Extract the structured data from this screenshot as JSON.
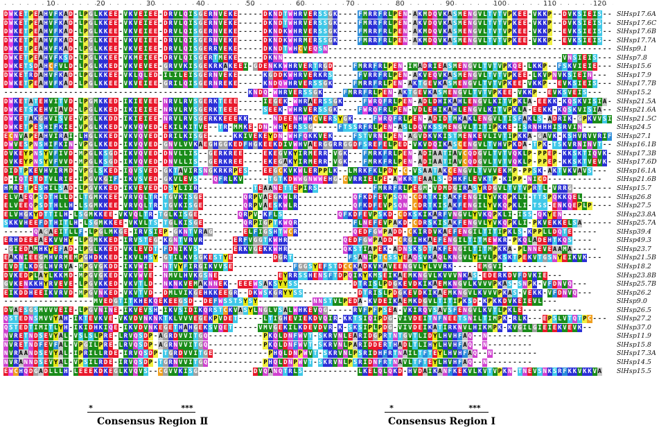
{
  "ruler": {
    "ticks": [
      "10",
      "20",
      "30",
      "40",
      "50",
      "60",
      "70",
      "80",
      "90",
      "100",
      "110",
      "120"
    ]
  },
  "colors": {
    "D": "#e8192c",
    "E": "#e8192c",
    "K": "#2b2fd6",
    "R": "#2b2fd6",
    "H": "#2b2fd6",
    "A": "#c8c8c8",
    "G": "#a0a0a0",
    "V": "#1a8c1a",
    "I": "#1a8c1a",
    "L": "#1a8c1a",
    "M": "#1a8c1a",
    "F": "#2a8bd9",
    "W": "#e040e0",
    "Y": "#e6e617",
    "S": "#3fc8e8",
    "T": "#3fc8e8",
    "N": "#cf40cf",
    "Q": "#cf40cf",
    "P": "#f0f040",
    "C": "#f0a020"
  },
  "sequences": [
    {
      "name": "SlHsp17.6A",
      "seq": "DWKETPEAHVFKAD-LPGLKKEE-VKVEIEE-DRVLQISGERNVEKE-----DKNDTWHRVERSSGK----FMRRFRLPEN-AKMDQVKASMENGVLTVTVPKEE-VKKP--DVKSIEIS---"
    },
    {
      "name": "SlHsp17.6C",
      "seq": "DWKETPEAHVFKAD-LPGLKKEE-VKVEIEE-DRVLQISGERNVEKE-----DKNDTWHRVERSSGK----FMRRFRLPEN-AKVDQVKASMENGVLTVTVPKEE-VKKP--DVKSIEIS---"
    },
    {
      "name": "SlHsp17.6B",
      "seq": "DWKETPEAHVFKAD-LPGLKKEE-VKVEIEE-DRVLQISGERNVEKE-----DKNDKWHRVERSSGK----FMRRFRLPEN-AKMDQVKASMENGVLTVTVPKEE-VKKP--EVKSIEIS---"
    },
    {
      "name": "SlHsp17.7A",
      "seq": "DWKETPEAHVFKAD-LPGLKKEE-VKVEIEE-DRVLQISGERNVEKE-----DKNDKWHRMERSSGK----FMRRFRLPEN-AKMDQVKASMENGVLTVTVPKEE-VKKP--EVKSIEIS---"
    },
    {
      "name": "SlHsp9.1",
      "seq": "DWKETPEAHVFKAD-LPGLKKEE-VKVEIEE-DRVLQISGERRVEKE-----DKNDTWHCVEQSN---------------------------------------------------------"
    },
    {
      "name": "SlHsp7.8",
      "seq": "DWKETPEAHVFKSD-LPGLKKEE-VKMEIEE-DRVLQISGERTMEKE-----DKNN--------------------------------------------------------VNSIEIS---"
    },
    {
      "name": "SlHsp15.6",
      "seq": "DWKETSDAHCFVLD-LPGLKKED-VKVEVEE-GRVVKISGEKRKAKEEI-GDENKKWHRVERTRGD----FMRRFRLPEN-IMADRIEASMENGVLTVTVPKQE-LKKP--FSKVIEIE---"
    },
    {
      "name": "SlHsp17.9",
      "seq": "DWKETRDAHVFKAD-LPGLKKEE-VKLQLED-ILILEISGERNVEKE-----KGDDKWHRVERKRS-----FVRRFRLPEN-AKVEQVKASMENGVLTVTVPKEE-LKVPNVKSIEIN---"
    },
    {
      "name": "SlHsp17.7B",
      "seq": "DWKETPEAHVFKAD-LPGLKKEE-VKVEIEE-GRILQISGERNREKE-----KNDQWHRVERSSGK----FMRRFRLPEN-AKTGEVKASMENGVLTVTVPKEE-VKKP--EVKSIEIS---"
    },
    {
      "name": "SlHsp15.2",
      "seq": "-------------------------------------------------KNDQ-WHRVERSSGK----FMRRFRLPEN-AKTGEVKASMENGVLTVTVPKEE-VKKP--EVKSVEIS---"
    },
    {
      "name": "SlHsp21.5A",
      "seq": "DWKETATEHVITVD-LPGMKKED-IKIEVEE-NRVLRVSGERKTEEE-----IEGEK-WHRAERSSGK----FWRQFRLPEN-ADLDHIKAHLENGVLKITVPKLA-EEKK-KQSKVISIA---"
    },
    {
      "name": "SlHsp21.6A",
      "seq": "DWKETSKEHVIAVD-LPGLKKED-IKIEIEE-NRVLRVSGERKTEEE-----SEEK-WHRVERSSGK----FWRQFRLPEN-VDLEHIKAHLENGVLKITVPKLA-EEKK-KQSKVISIA---"
    },
    {
      "name": "SlHsp21.5C",
      "seq": "DWKETAKGHVISVE-VPGLKKDD-IKIEIEE-NRVLRVSGERKKEEEKK-----NDEENHWHCVERSYGK----FWRQFRLPEN-ADIDTMKAKLENGVLTISFAKLS-ADRIK-GPKVVSIE---"
    },
    {
      "name": "SlHsp24.5",
      "seq": "DWKETPESHIFKIE-VPGLKKED-VKVQVED-EKILKITVE--TR-MMKE-DN-WHYERSSG-----FTSSRFRLPEN-ASLDQVKSSMENGVLTITIPKKE-ISRNHHHISRVIN---"
    },
    {
      "name": "SlHsp27.1",
      "seq": "ECNVAPEAHVIRAI-LHGLKKED-VKVQVED-DRILKISGE-----KKIVEKEYDN-WHFQKKVEK----FSTVRNLPEN-AGVDKVKISTMENKEVLIVTIPKKA-GAVK-KSHVRVVRIF---"
    },
    {
      "name": "SlHsp16.1B",
      "seq": "DWVESPNSHIFKIN-VPGLKKED-IKVQVED-GNVLVVKAEGHGGKEDFHGKEEKDIVWHVAERGGRRGGDFSREFELPED-VKVDQIKASCENGVLTVHVPKDA-TPK-TSKVRNINVT---"
    },
    {
      "name": "SlHsp17.3B",
      "seq": "DVKEYPNSYVFIVD-MPGLKSGD-IKVQVED-DNVLLIS--GERKREE----EKEGVKYIRMERR-VGK---FMRKFRLPEN-ADIAATIAVCQDGVLTVTVQKLP-PPEP-KKSKTIQVK---"
    },
    {
      "name": "SlHsp17.6D",
      "seq": "DVKEYPNSYVFVVD-MPGLKSGD-IKVQVED-DNVLLIS--GERKREE----EKEGAKYIRMERR-VGK---FMRKFRLPEN-ADIAATIAVCQDGVLTVTVQKLP-PPEP-KKSKTVEVK---"
    },
    {
      "name": "SlHsp16.1A",
      "seq": "DIDTPKEVHVIRMD-VPGLSKED-IQVSVED-GKTAVIRSNGKRKRPES---EEGCKVKWLERPPLK--LMRKFKLPDY-C-VSAATAKCENGVLTVVVEKMP-PPSK-AKTVKVAVS---"
    },
    {
      "name": "SlHsp21.6B",
      "seq": "D-IQTETDTVLRIE-IPGVKGIF-IKVSVED-GKVLEVS---QFRLKV-----TGTKDWWGNWWEHG-CVRRIELPE-AWKRTEAALS-DHKFLEVKTP-KIPP-NICD-----------"
    },
    {
      "name": "SlHsp15.7",
      "seq": "HMRETPESHILSAD-LPGVKKED-IKVEVED-DSYLIIR-----------TEAANETTEPIRS-----------FMRRFRLPEGM-VDMDGIRASYRDGVLTVTVPRTL-VRRG-----------"
    },
    {
      "name": "SlHsp26.8",
      "seq": "ELVAEQPSDTHLLD-LTGMKKEE-VRVQLTR-TGVKISGE--------QRPVAEGKWLR-----------QFKDFEVPSQN-CDRTKISAKFENGILYVKQPKLI-TTSPQKKQEL------"
    },
    {
      "name": "SlHsp27.5",
      "seq": "ELVEEQPSDTHLLH-LSGMKKEE-VRVQLTR-TGVKISGE--------QRPVAESKWLR-----------QFKDFEVPSQN-CDRTKISAKFENGILYVKQPKLI-TSS-ENKQEPLP----"
    },
    {
      "name": "SlHsp23.8A",
      "seq": "ELVHGKYDTTILH-LSGMKKEE-VKVQLTR-TGLKISGE--------QRPV-KFLS-----------QFKDFEVPSKD-CDKSKIKARFVNGVLYVKQPKLI-ISS-QKYEN------"
    },
    {
      "name": "SlHsp25.7A",
      "seq": "SKKVHEEFDTHITLH-LSGMKKEE-VKVLTS-TGLKISGE--------QRPIGPTKWQR-----------FLNEFEVPAKD-CDRSKISAKFENGVLYVKQPKLI-PKVEKKELSA------"
    },
    {
      "name": "SlHsp39.4",
      "seq": "------QAGAEITLLF-LPGLMKGE-IRVSIEP-GKNTVRAG------ELFIGSHTWCR-----------QEDFGWPADD-CKIRDVKAEFENGILTITIPKLS-KPPLLDQTE-----"
    },
    {
      "name": "SlHsp49.3",
      "seq": "ERHDEEEAEKVVHY-LPGMKKED-IRVSTEG-KGNTVRVR------ERFVGGTKWHR-----------QEDFGWPADD-CRGIHKAEFENGILTITMEWKR-PKQLADEHTKQS----"
    },
    {
      "name": "SlHsp23.7",
      "seq": "-GIEDAMHKYEFAD-LPGLKKED-VKLEVDT-FDNIKVS-------ERKVGEKKWHR-----------QKSTIAPEK-ADNSKSDTAKFENGILTITMPKKA-PLNNEVEAAMA-----"
    },
    {
      "name": "SlHsp21.5B",
      "seq": "EAKNIEEGMHVRMEMPGHDKKED-IKVLHSY-GTILKVSGKESTYE--------DGRT-----------FSANIPTCSSYEAQSVKAQLKNGVLYIVLPKSKTPEKVTGSNYEIKVK---"
    },
    {
      "name": "SlHsp18.2",
      "seq": "EVDTLKDGLHVRVA-MPGVGKDD-IKVWIE--NTVYFIRGIKVVSE------------FGGSYEFSTDCCKADKVKAVEENGVLYLVVRK-----EMGVI---------"
    },
    {
      "name": "SlHsp23.8B",
      "seq": "DVKEDPLAYLKKMD-MPGVGKED-VKVWVE--NMVLHVKGSNE------------EYRRSSHENSFTDPQIKYKMSEIKAEMKNGVLKVVVNKAS-EDERKDVFDVKIE---"
    },
    {
      "name": "SlHsp25.7B",
      "seq": "GVKENKKHYRVEVE-LPGVKKED-VKVTLD--NKNKVEMAKNNEK--EEEWSAKSYYSS-----------DTRISLPDGKEVDKIKAEMKNGVLKVVVPKAS-SNPK-VFDNVQ---"
    },
    {
      "name": "SlHsp26.2",
      "seq": "EIKDDHEEIKVRVD-MPGVNKED-VKVTVD--DMLVIKGEHKKEEGR--DKWSKGRYYSS-----------DTRISLPDGKEVDKIKAEMKNGVLKVVVPKAS-VEKK-VFDNVQ---"
    },
    {
      "name": "SlHsp9.0",
      "seq": "------------------MVEDGTITKHEKQEKEEGSD--DEFWSSTSYSY-----------NNSTVLPEDA-KVDEIKAEMKDGVLTITIPKSD-KPKKDVKEIEVL---"
    },
    {
      "name": "SlHsp26.5",
      "seq": "DVAESGSMVVVEIE-LPGVNINE-IKVEVSH-IKVSIDIKQRSTCKVASYLNGLVSALWHKEVQG-----RVFPFPSEA-VKIRQVSAVSFENGVLKVTLPKLE------------"
    },
    {
      "name": "SlHsp27.2",
      "seq": "QSTEDNSMVVYAH-IKTEVKVE-VKVDVNKNKTKLVVVEGEKPVDET-----LTIGHEVIEKDVQIR-KKTSIQIPDG-VIVDEITNFNEETSNILTIMPK-RLK---EPSLVTQTPC---"
    },
    {
      "name": "SlHsp37.0",
      "seq": "QSTEDTIMITLYH-IKIDHKIQE-IKVDVNKEGETHAHGEKSVQET-----VMVGEKILKDEVDVR-K-SKSIPLPDG-VIVDEIKATIRKNVLHIKMPK-KVGILGIEIEKVEVK--"
    },
    {
      "name": "SlHsp11.9",
      "seq": "NVRETNDSEVYAL-VSLSLPRE-LRVQSDP-AGRDVVITGQ-----------PKQLDNFWVT-SKRVNLEARIDGPRTNTGVTLIDYLHVHFAQ--N---------"
    },
    {
      "name": "SlHsp15.8",
      "seq": "NVRETNDFEVFAL-VPGILPRE-LRVQSDP-AGRNVVITGQ-----------PKQLDNFWVT-SKRVNLPARIDDERTHADLTLIHYLHVHFAQ--N---------"
    },
    {
      "name": "SlHsp17.3A",
      "seq": "NVRAANDSEVYAL-IPRILLRDE-IRVQSDP-TGRDVVITGE-----------PHQLDNPWVT-SKRVNLPSRIDHFRTNAILTFTEYLHVHFAQ--N---------"
    },
    {
      "name": "SlHsp14.5",
      "seq": "NVRANNDSEVYAL-VPSILRDE-IRVQSDP-TGRNVVITGQ-----------PHQLDNPWVT-SKRVNLPSRIDNFRTNAVLTFTEYLHVHFAQ--N---------"
    },
    {
      "name": "SlHsp15.5",
      "seq": "EWCHQDGADLLLH-LEEEKDKEGLKVQVS--CGVVKISG-----------DVQANQTRLS-----------LKELQLQKD-HVDAIKANFKEKVLKVTVPKN-TNEVSNKSRFKKVKKVA"
    }
  ],
  "consensus": {
    "region2_label": "Consensus Region Ⅱ",
    "region1_label": "Consensus Region Ⅰ",
    "marks": [
      "*",
      "***",
      "*",
      "***"
    ]
  }
}
